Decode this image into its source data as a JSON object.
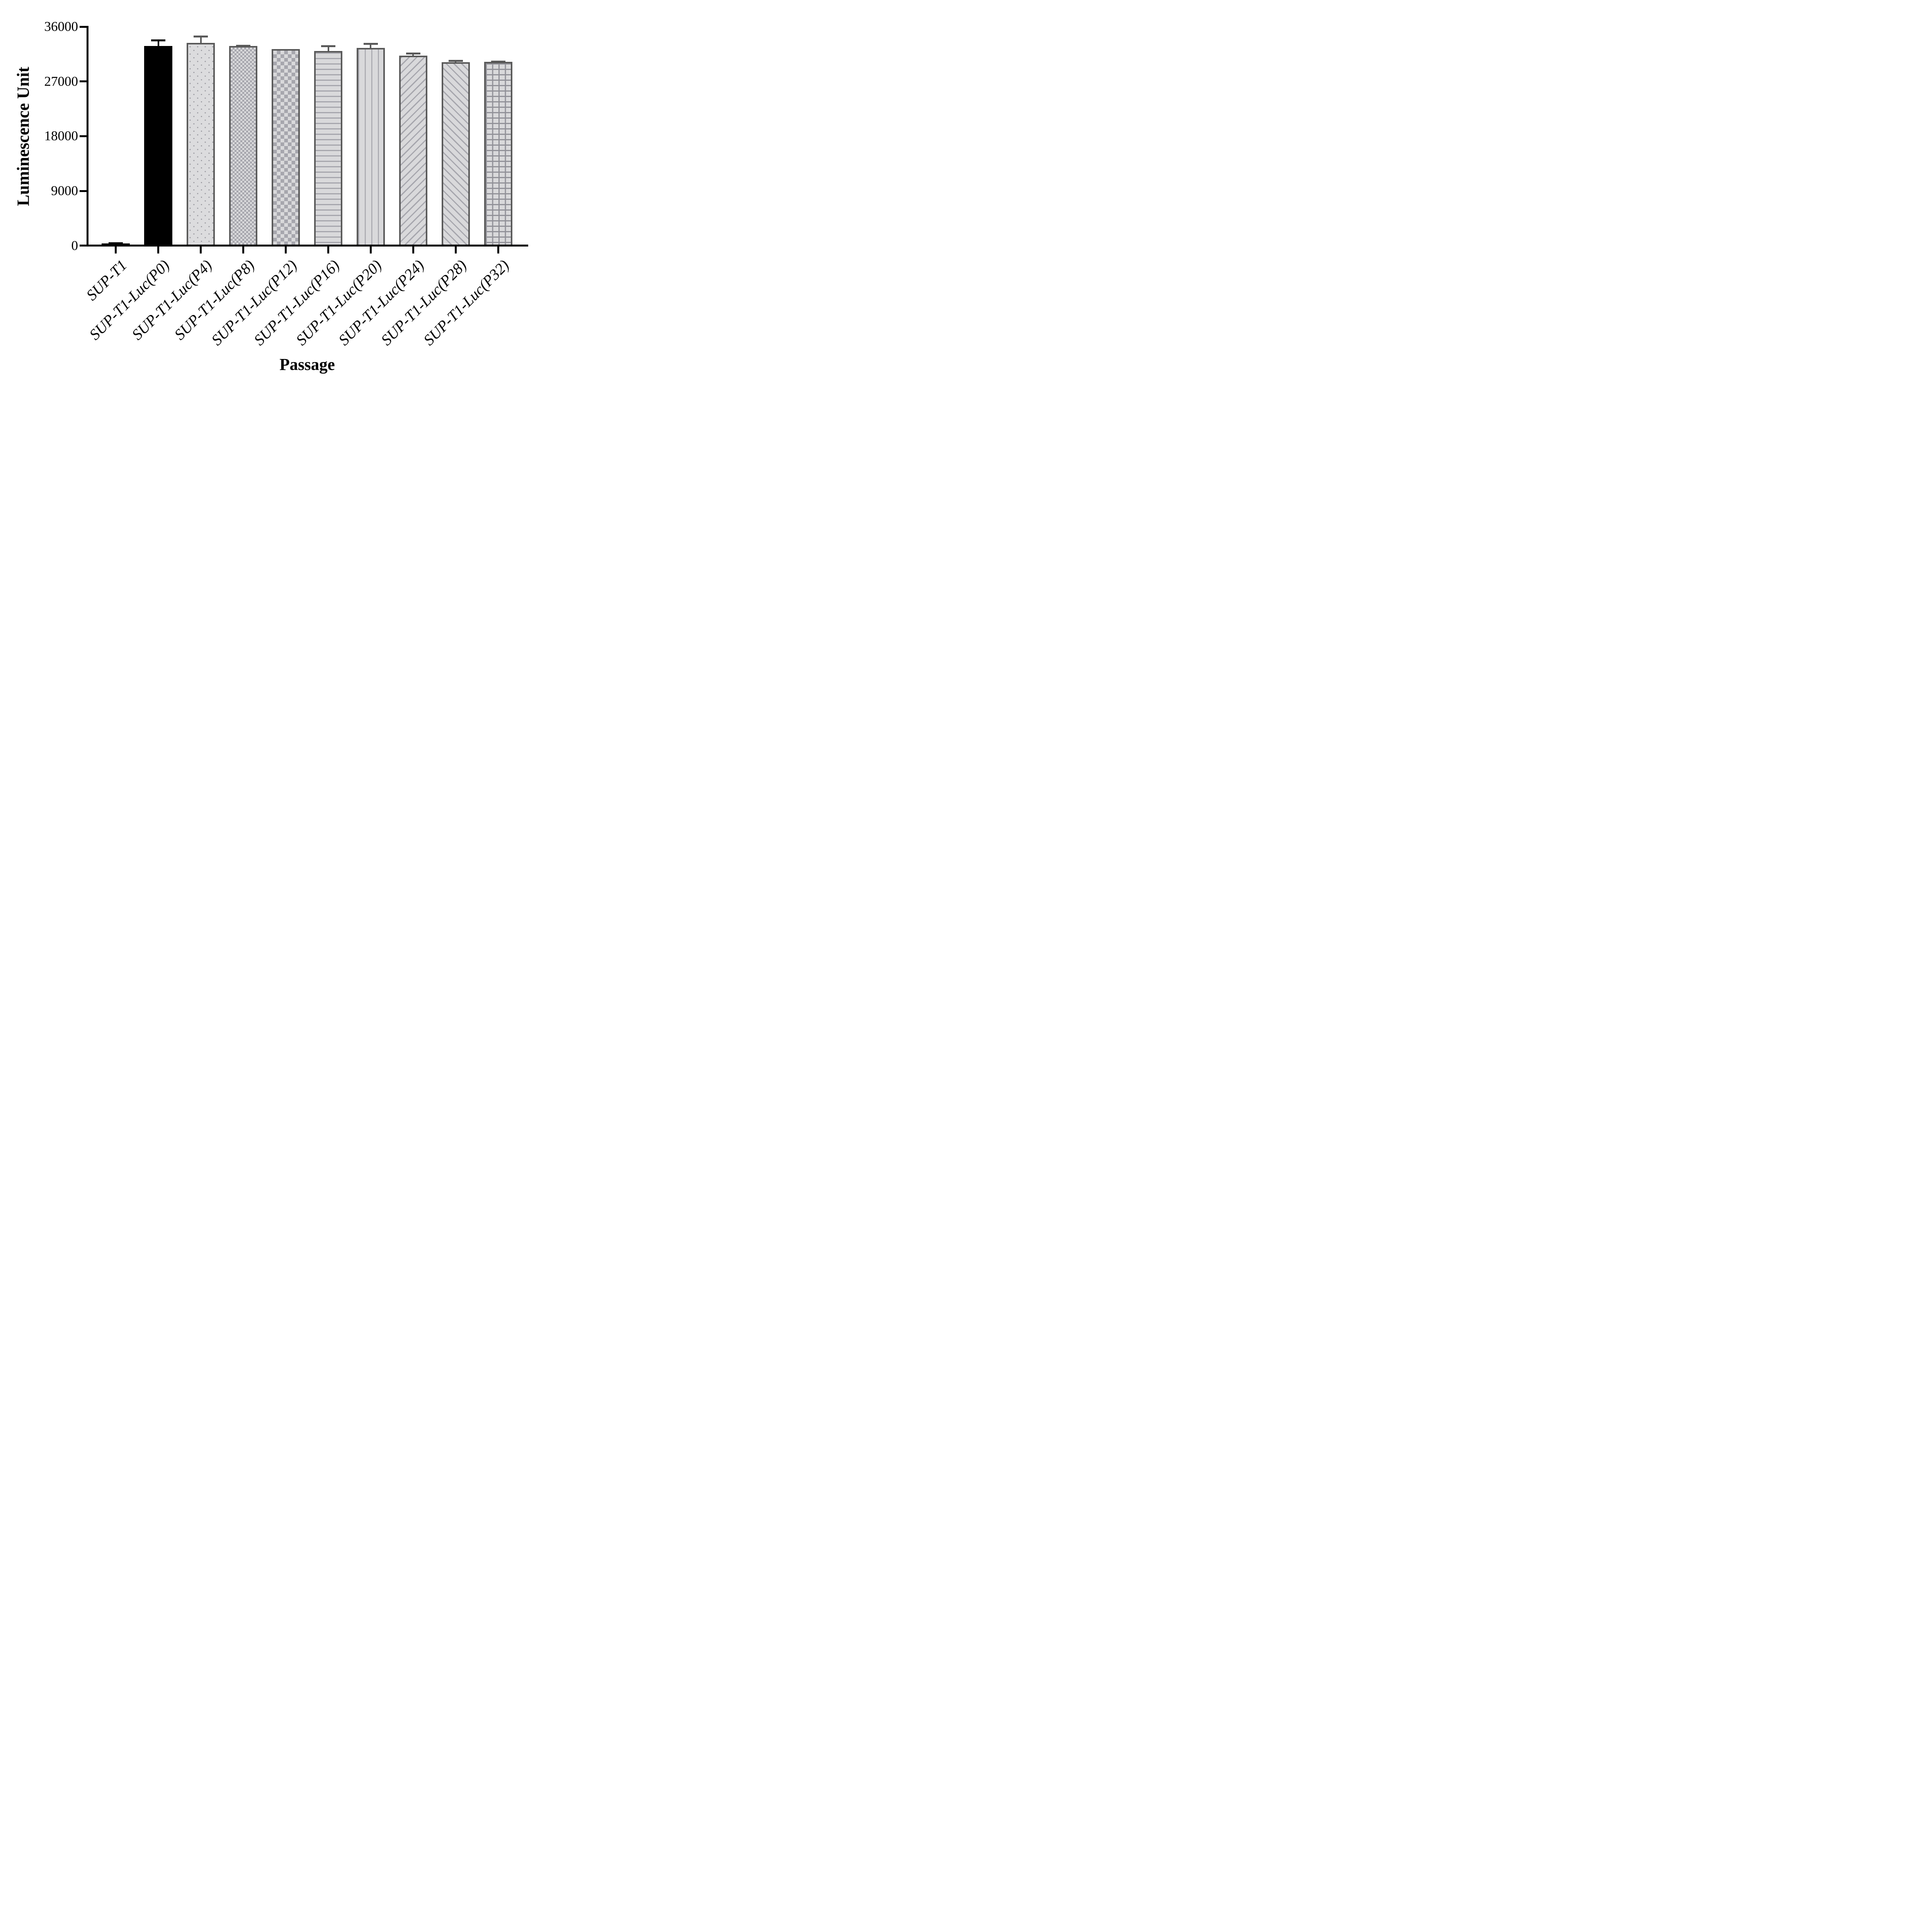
{
  "chart_data": {
    "type": "bar",
    "title": "",
    "xlabel": "Passage",
    "ylabel": "Luminescence Unit",
    "categories": [
      "SUP-T1",
      "SUP-T1-Luc(P0)",
      "SUP-T1-Luc(P4)",
      "SUP-T1-Luc(P8)",
      "SUP-T1-Luc(P12)",
      "SUP-T1-Luc(P16)",
      "SUP-T1-Luc(P20)",
      "SUP-T1-Luc(P24)",
      "SUP-T1-Luc(P28)",
      "SUP-T1-Luc(P32)"
    ],
    "values": [
      400,
      32820,
      33320,
      32820,
      32320,
      31990,
      32490,
      31250,
      30140,
      30190
    ],
    "errors_plus": [
      140,
      1110,
      1240,
      220,
      0,
      930,
      860,
      490,
      390,
      210
    ],
    "patterns": [
      "solid-black",
      "solid-black",
      "dots",
      "checker-small",
      "checker-large",
      "lines-horizontal",
      "lines-vertical",
      "lines-diagonal-up",
      "lines-diagonal-down",
      "grid"
    ],
    "bar_colors": [
      "#000000",
      "#000000",
      "#dcdcde",
      "#d9d9db",
      "#d9d9db",
      "#d9d9db",
      "#d9d9db",
      "#d9d9db",
      "#d9d9db",
      "#d9d9db"
    ],
    "error_bar_colors": [
      "#000000",
      "#000000",
      "#595959",
      "#595959",
      "#595959",
      "#595959",
      "#595959",
      "#595959",
      "#595959",
      "#595959"
    ],
    "ylim": [
      0,
      36000
    ],
    "yticks": [
      0,
      9000,
      18000,
      27000,
      36000
    ],
    "ytick_labels": [
      "0",
      "9000",
      "18000",
      "27000",
      "36000"
    ],
    "grid": false,
    "legend_position": "none",
    "colors": {
      "axis": "#000000",
      "text": "#000000",
      "bar_fill_light": "#d9d9db",
      "pattern_gray": "#a6a6ad",
      "grid_pattern_line": "#919198",
      "bar_border_gray": "#595959",
      "black": "#000000",
      "background": "#ffffff"
    }
  }
}
